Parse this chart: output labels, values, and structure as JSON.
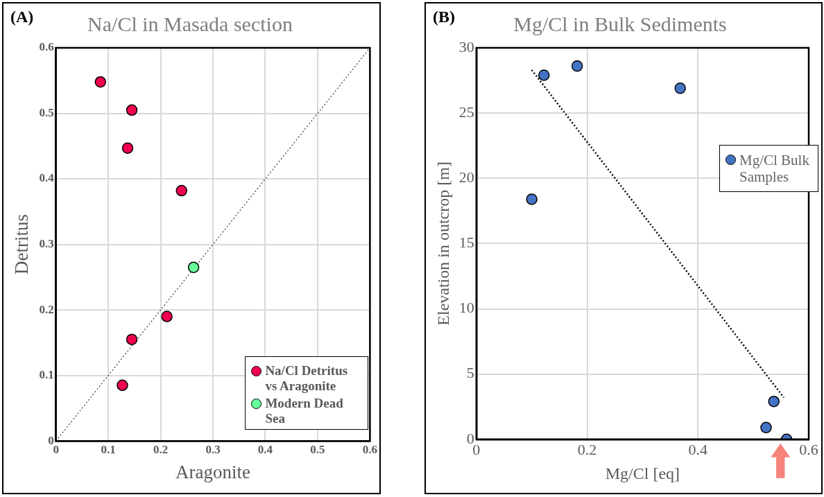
{
  "chart_data": [
    {
      "type": "scatter",
      "title": "Na/Cl in Masada section",
      "xlabel": "Aragonite",
      "ylabel": "Detritus",
      "annotations": [
        "(A)"
      ],
      "xlim": [
        0,
        0.6
      ],
      "ylim": [
        0,
        0.6
      ],
      "xticks": [
        0,
        0.1,
        0.2,
        0.3,
        0.4,
        0.5,
        0.6
      ],
      "yticks": [
        0,
        0.1,
        0.2,
        0.3,
        0.4,
        0.5,
        0.6
      ],
      "grid": true,
      "legend": "bottom right",
      "marker": "circle",
      "series": [
        {
          "name": "Na/Cl Detritus vs Aragonite",
          "color": "#f0004e",
          "x": [
            0.085,
            0.145,
            0.137,
            0.24,
            0.212,
            0.145,
            0.127
          ],
          "values": [
            0.548,
            0.505,
            0.447,
            0.382,
            0.19,
            0.155,
            0.085
          ]
        },
        {
          "name": "Modern Dead Sea",
          "color": "#66ff99",
          "x": [
            0.263
          ],
          "values": [
            0.265
          ]
        },
        {
          "type": "line",
          "color": "#333333",
          "line_style": "dotted",
          "marker": "none",
          "x": [
            0,
            0.6
          ],
          "values": [
            0,
            0.6
          ]
        }
      ]
    },
    {
      "type": "scatter",
      "title": "Mg/Cl in Bulk Sediments",
      "xlabel": "Mg/Cl [eq]",
      "ylabel": "Elevation in outcrop [m]",
      "annotations": [
        "(B)"
      ],
      "xlim": [
        0,
        0.6
      ],
      "ylim": [
        0,
        30
      ],
      "xticks": [
        0,
        0.2,
        0.4,
        0.6
      ],
      "yticks": [
        0,
        5,
        10,
        15,
        20,
        25,
        30
      ],
      "grid": true,
      "legend": "right",
      "marker": "circle",
      "series": [
        {
          "name": "Mg/Cl Bulk Samples",
          "color": "#4472c4",
          "x": [
            0.1,
            0.122,
            0.182,
            0.368,
            0.537,
            0.523,
            0.56
          ],
          "values": [
            18.4,
            27.9,
            28.6,
            26.9,
            2.9,
            0.9,
            0.0
          ]
        },
        {
          "type": "line",
          "color": "#000000",
          "line_style": "dotted",
          "marker": "none",
          "x": [
            0.1,
            0.555
          ],
          "values": [
            28.3,
            3.2
          ]
        }
      ]
    }
  ]
}
